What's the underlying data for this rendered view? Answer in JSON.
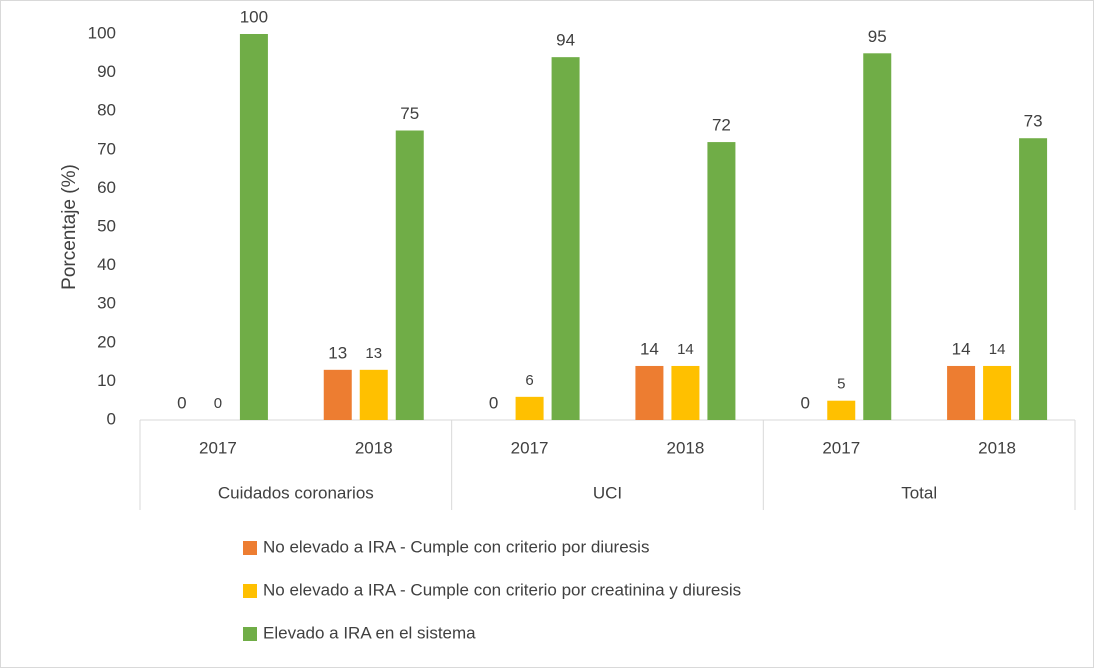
{
  "chart_data": {
    "type": "bar",
    "y_label": "Porcentaje (%)",
    "categories": [
      "2017",
      "2018",
      "2017",
      "2018",
      "2017",
      "2018"
    ],
    "groups": [
      "Cuidados coronarios",
      "UCI",
      "Total"
    ],
    "series": [
      {
        "name": "No elevado a IRA - Cumple con criterio por diuresis",
        "color": "#ed7d31",
        "values": [
          0,
          13,
          0,
          14,
          0,
          14
        ]
      },
      {
        "name": "No elevado a IRA - Cumple con criterio por creatinina y diuresis",
        "color": "#ffc000",
        "values": [
          0,
          13,
          6,
          14,
          5,
          14
        ]
      },
      {
        "name": "Elevado a IRA en el sistema",
        "color": "#70ad47",
        "values": [
          100,
          75,
          94,
          72,
          95,
          73
        ]
      }
    ],
    "ylim": [
      0,
      100
    ],
    "yticks": [
      0,
      10,
      20,
      30,
      40,
      50,
      60,
      70,
      80,
      90,
      100
    ],
    "grid": false,
    "legend": "bottom"
  }
}
